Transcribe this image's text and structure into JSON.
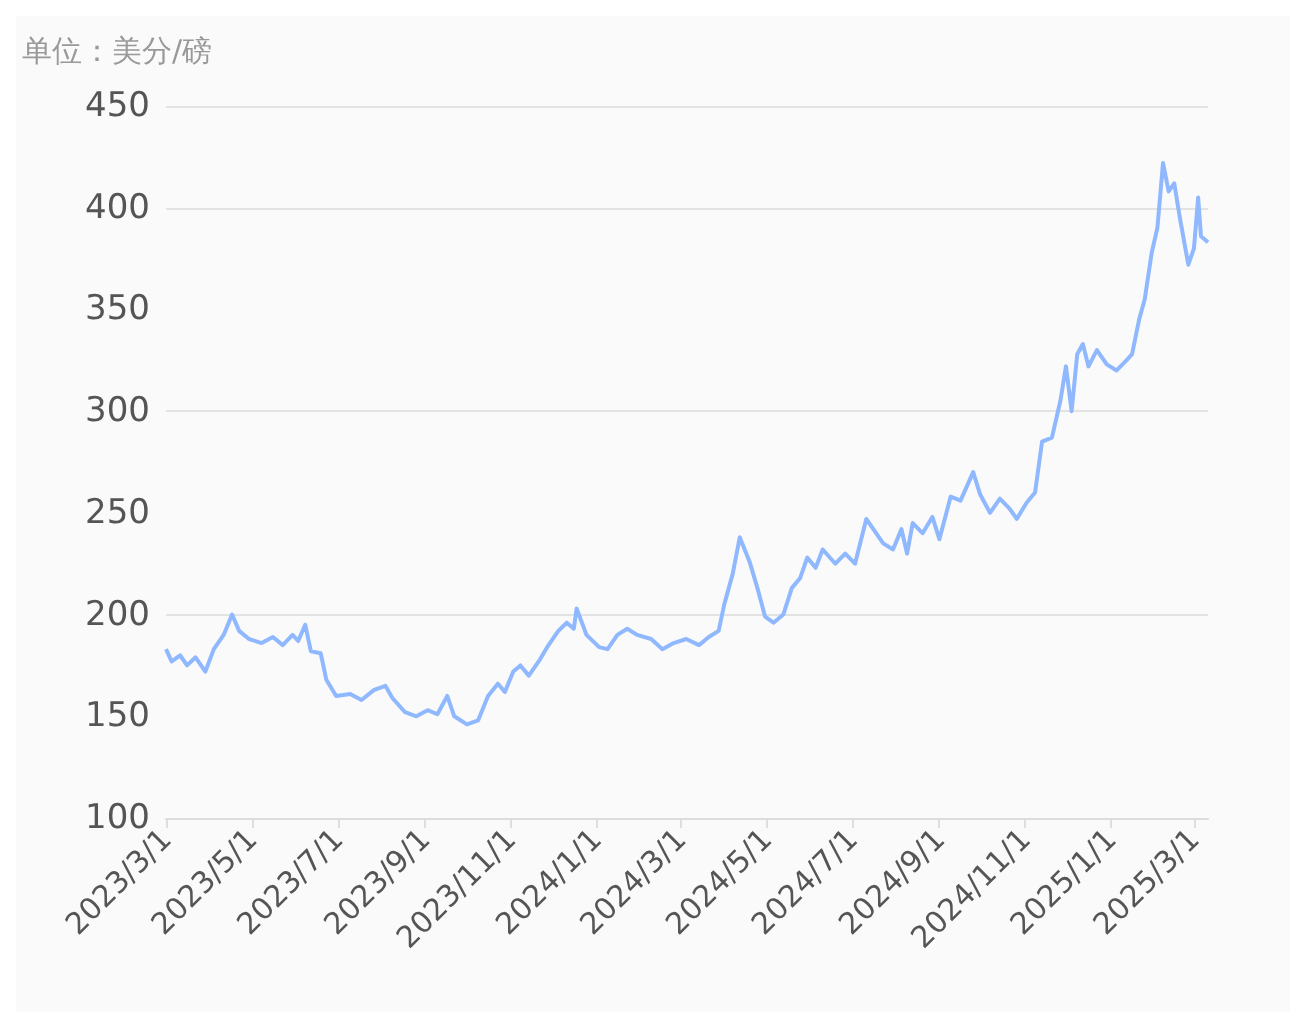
{
  "chart_data": {
    "type": "line",
    "ylabel": "单位：美分/磅",
    "x": [
      "2023-03-01",
      "2023-03-05",
      "2023-03-11",
      "2023-03-16",
      "2023-03-22",
      "2023-03-29",
      "2023-04-04",
      "2023-04-11",
      "2023-04-17",
      "2023-04-22",
      "2023-04-29",
      "2023-05-08",
      "2023-05-16",
      "2023-05-23",
      "2023-05-30",
      "2023-06-03",
      "2023-06-08",
      "2023-06-12",
      "2023-06-19",
      "2023-06-23",
      "2023-06-30",
      "2023-07-10",
      "2023-07-18",
      "2023-07-27",
      "2023-08-04",
      "2023-08-09",
      "2023-08-18",
      "2023-08-26",
      "2023-09-03",
      "2023-09-10",
      "2023-09-17",
      "2023-09-22",
      "2023-10-01",
      "2023-10-09",
      "2023-10-16",
      "2023-10-23",
      "2023-10-28",
      "2023-11-03",
      "2023-11-08",
      "2023-11-14",
      "2023-11-22",
      "2023-11-28",
      "2023-12-05",
      "2023-12-11",
      "2023-12-16",
      "2023-12-18",
      "2023-12-25",
      "2024-01-03",
      "2024-01-09",
      "2024-01-16",
      "2024-01-23",
      "2024-01-30",
      "2024-02-09",
      "2024-02-17",
      "2024-02-25",
      "2024-03-05",
      "2024-03-14",
      "2024-03-21",
      "2024-03-28",
      "2024-04-01",
      "2024-04-07",
      "2024-04-12",
      "2024-04-19",
      "2024-04-25",
      "2024-04-30",
      "2024-05-06",
      "2024-05-13",
      "2024-05-19",
      "2024-05-25",
      "2024-05-30",
      "2024-06-05",
      "2024-06-10",
      "2024-06-19",
      "2024-06-26",
      "2024-07-03",
      "2024-07-11",
      "2024-07-16",
      "2024-07-23",
      "2024-07-30",
      "2024-08-05",
      "2024-08-09",
      "2024-08-13",
      "2024-08-20",
      "2024-08-27",
      "2024-09-01",
      "2024-09-09",
      "2024-09-16",
      "2024-09-25",
      "2024-09-30",
      "2024-10-07",
      "2024-10-14",
      "2024-10-21",
      "2024-10-26",
      "2024-11-02",
      "2024-11-08",
      "2024-11-13",
      "2024-11-20",
      "2024-11-26",
      "2024-11-30",
      "2024-12-04",
      "2024-12-08",
      "2024-12-12",
      "2024-12-16",
      "2024-12-22",
      "2024-12-29",
      "2025-01-05",
      "2025-01-12",
      "2025-01-16",
      "2025-01-21",
      "2025-01-25",
      "2025-01-30",
      "2025-02-03",
      "2025-02-07",
      "2025-02-11",
      "2025-02-15",
      "2025-02-19",
      "2025-02-25",
      "2025-03-01",
      "2025-03-04",
      "2025-03-06",
      "2025-03-11"
    ],
    "series": [
      {
        "color": "#8fb8ff",
        "values": [
          183,
          177,
          180,
          175,
          179,
          172,
          183,
          190,
          200,
          192,
          188,
          186,
          189,
          185,
          190,
          187,
          195,
          182,
          181,
          168,
          160,
          161,
          158,
          163,
          165,
          159,
          152,
          150,
          153,
          151,
          160,
          150,
          146,
          148,
          160,
          166,
          162,
          172,
          175,
          170,
          178,
          185,
          192,
          196,
          193,
          203,
          190,
          184,
          183,
          190,
          193,
          190,
          188,
          183,
          186,
          188,
          185,
          189,
          192,
          205,
          220,
          238,
          226,
          212,
          199,
          196,
          200,
          213,
          218,
          228,
          223,
          232,
          225,
          230,
          225,
          247,
          242,
          235,
          232,
          242,
          230,
          245,
          240,
          248,
          237,
          258,
          256,
          270,
          259,
          250,
          257,
          252,
          247,
          255,
          260,
          285,
          287,
          305,
          322,
          300,
          328,
          333,
          322,
          330,
          323,
          320,
          325,
          328,
          345,
          355,
          378,
          390,
          422,
          408,
          412,
          395,
          372,
          380,
          405,
          386,
          383
        ]
      }
    ],
    "xlim": [
      "2023-03-01",
      "2025-03-11"
    ],
    "xticks": [
      {
        "value": "2023-03-01",
        "label": "2023/3/1"
      },
      {
        "value": "2023-05-01",
        "label": "2023/5/1"
      },
      {
        "value": "2023-07-01",
        "label": "2023/7/1"
      },
      {
        "value": "2023-09-01",
        "label": "2023/9/1"
      },
      {
        "value": "2023-11-01",
        "label": "2023/11/1"
      },
      {
        "value": "2024-01-01",
        "label": "2024/1/1"
      },
      {
        "value": "2024-03-01",
        "label": "2024/3/1"
      },
      {
        "value": "2024-05-01",
        "label": "2024/5/1"
      },
      {
        "value": "2024-07-01",
        "label": "2024/7/1"
      },
      {
        "value": "2024-09-01",
        "label": "2024/9/1"
      },
      {
        "value": "2024-11-01",
        "label": "2024/11/1"
      },
      {
        "value": "2025-01-01",
        "label": "2025/1/1"
      },
      {
        "value": "2025-03-01",
        "label": "2025/3/1"
      }
    ],
    "ylim": [
      100,
      450
    ],
    "yticks": [
      100,
      150,
      200,
      250,
      300,
      350,
      400,
      450
    ],
    "grid": "y",
    "marker": "none",
    "line_style": "solid"
  }
}
